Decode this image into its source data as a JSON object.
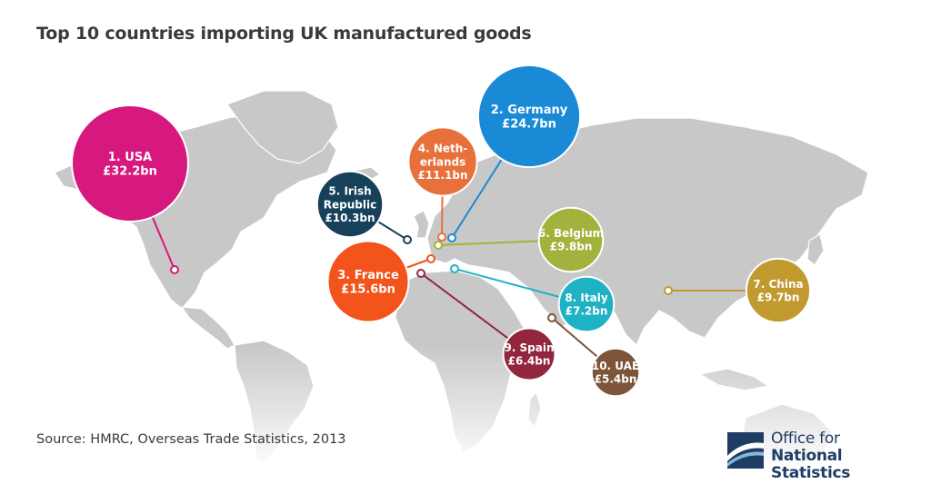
{
  "title": "Top 10 countries importing UK manufactured goods",
  "source": "Source: HMRC, Overseas Trade Statistics, 2013",
  "logo": {
    "line1": "Office for",
    "line2": "National Statistics",
    "color": "#1f3d64"
  },
  "chart_data": {
    "type": "bubble-map",
    "title": "Top 10 countries importing UK manufactured goods",
    "unit": "£bn",
    "series": [
      {
        "rank": 1,
        "country": "USA",
        "label_lines": [
          "1. USA",
          "£32.2bn"
        ],
        "value": 32.2,
        "color": "#d6187f"
      },
      {
        "rank": 2,
        "country": "Germany",
        "label_lines": [
          "2. Germany",
          "£24.7bn"
        ],
        "value": 24.7,
        "color": "#1a8ad6"
      },
      {
        "rank": 3,
        "country": "France",
        "label_lines": [
          "3. France",
          "£15.6bn"
        ],
        "value": 15.6,
        "color": "#f2541b"
      },
      {
        "rank": 4,
        "country": "Netherlands",
        "label_lines": [
          "4. Neth-",
          "erlands",
          "£11.1bn"
        ],
        "value": 11.1,
        "color": "#e8703a"
      },
      {
        "rank": 5,
        "country": "Irish Republic",
        "label_lines": [
          "5. Irish",
          "Republic",
          "£10.3bn"
        ],
        "value": 10.3,
        "color": "#17415a"
      },
      {
        "rank": 6,
        "country": "Belgium",
        "label_lines": [
          "6. Belgium",
          "£9.8bn"
        ],
        "value": 9.8,
        "color": "#a3b23c"
      },
      {
        "rank": 7,
        "country": "China",
        "label_lines": [
          "7. China",
          "£9.7bn"
        ],
        "value": 9.7,
        "color": "#c19a2f"
      },
      {
        "rank": 8,
        "country": "Italy",
        "label_lines": [
          "8. Italy",
          "£7.2bn"
        ],
        "value": 7.2,
        "color": "#1fb2c4"
      },
      {
        "rank": 9,
        "country": "Spain",
        "label_lines": [
          "9. Spain",
          "£6.4bn"
        ],
        "value": 6.4,
        "color": "#92263d"
      },
      {
        "rank": 10,
        "country": "UAE",
        "label_lines": [
          "10. UAE",
          "£5.4bn"
        ],
        "value": 5.4,
        "color": "#7d5538"
      }
    ]
  }
}
